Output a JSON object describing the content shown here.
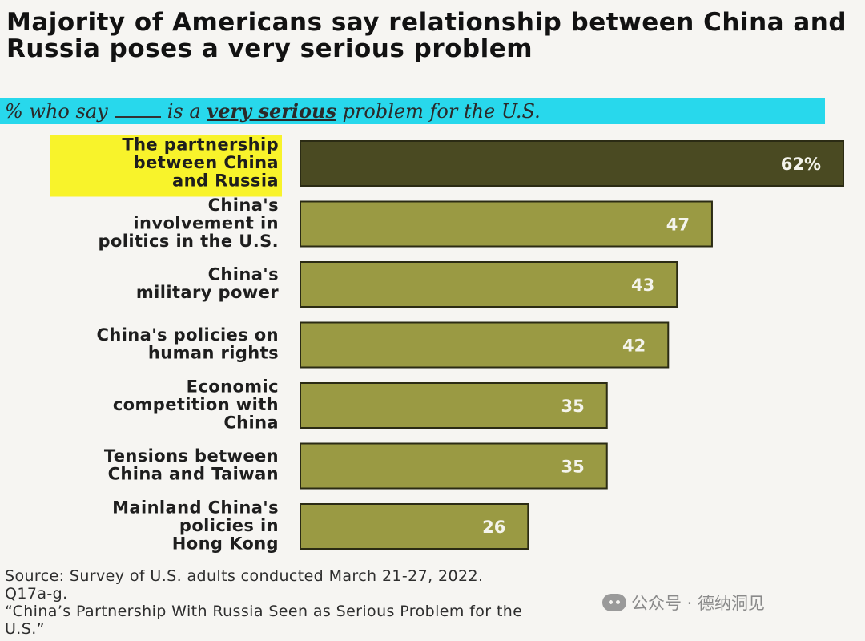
{
  "header": {
    "title": "Majority of Americans say relationship between China and Russia poses a very serious problem",
    "subtitle_part1": "% who say",
    "subtitle_part2": "is a",
    "subtitle_emphasis": "very serious",
    "subtitle_part3": "problem for the U.S."
  },
  "colors": {
    "bar_primary": "#4a4a22",
    "bar_secondary": "#9a9a43",
    "highlight": "#f8f32b",
    "subtitle_band": "#28d8ec",
    "value_text": "#f4f4ec"
  },
  "chart_data": {
    "type": "bar",
    "orientation": "horizontal",
    "title": "Majority of Americans say relationship between China and Russia poses a very serious problem",
    "subtitle": "% who say ___ is a very serious problem for the U.S.",
    "categories": [
      [
        "The partnership",
        "between China",
        "and Russia"
      ],
      [
        "China's",
        "involvement in",
        "politics in the U.S."
      ],
      [
        "China's",
        "military power"
      ],
      [
        "China's policies on",
        "human rights"
      ],
      [
        "Economic",
        "competition with",
        "China"
      ],
      [
        "Tensions between",
        "China and Taiwan"
      ],
      [
        "Mainland China's",
        "policies in",
        "Hong Kong"
      ]
    ],
    "values": [
      62,
      47,
      43,
      42,
      35,
      35,
      26
    ],
    "value_labels": [
      "62%",
      "47",
      "43",
      "42",
      "35",
      "35",
      "26"
    ],
    "xlim": [
      0,
      62
    ],
    "highlighted_index": 0,
    "xlabel": "",
    "ylabel": "",
    "grid": false
  },
  "footer": {
    "source_line1": "Source: Survey of U.S. adults conducted March 21-27, 2022.",
    "source_line2": "Q17a-g.",
    "source_line3": "“China’s Partnership With Russia Seen as Serious Problem for the",
    "source_line4": "U.S.”"
  },
  "watermark": {
    "text": "公众号 · 德纳洞见",
    "icon": "wechat-icon"
  }
}
